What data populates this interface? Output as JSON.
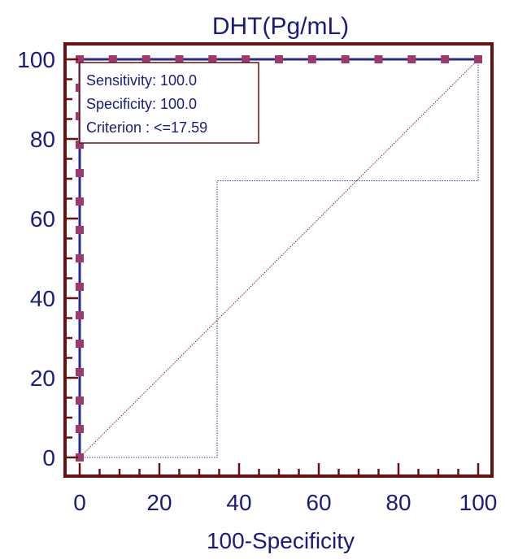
{
  "chart_data": {
    "type": "line",
    "title": "DHT(Pg/mL)",
    "xlabel": "100-Specificity",
    "ylabel": "",
    "xlim": [
      0,
      100
    ],
    "ylim": [
      0,
      100
    ],
    "xticks": [
      "0",
      "20",
      "40",
      "60",
      "80",
      "100"
    ],
    "yticks": [
      "0",
      "20",
      "40",
      "60",
      "80",
      "100"
    ],
    "grid": false,
    "colors": {
      "frame": "#6b0f0f",
      "roc_line": "#2a2a8c",
      "markers": "#9e3a6a",
      "diagonal": "#9b1c1c",
      "ci_band": "#3a3aa0",
      "text": "#1a1a80"
    },
    "series": [
      {
        "style": "roc-curve",
        "x": [
          0,
          0,
          0,
          0,
          0,
          0,
          0,
          0,
          0,
          0,
          0,
          0,
          0,
          0,
          0,
          0,
          8.33,
          16.67,
          25,
          33.33,
          41.67,
          50,
          58.33,
          66.67,
          75,
          83.33,
          91.67,
          100
        ],
        "y": [
          0,
          7.14,
          14.29,
          21.43,
          28.57,
          35.71,
          42.86,
          50,
          57.14,
          64.29,
          71.43,
          78.57,
          85.71,
          92.86,
          100,
          100,
          100,
          100,
          100,
          100,
          100,
          100,
          100,
          100,
          100,
          100,
          100,
          100
        ]
      },
      {
        "style": "reference-diagonal",
        "x": [
          0,
          100
        ],
        "y": [
          0,
          100
        ]
      },
      {
        "style": "confidence-bound-outer",
        "x": [
          0,
          34.5,
          34.5,
          100,
          100
        ],
        "y": [
          0,
          0,
          69.5,
          69.5,
          100
        ]
      }
    ],
    "annotation": {
      "lines": [
        "Sensitivity: 100.0",
        "Specificity: 100.0",
        "Criterion : <=17.59"
      ]
    }
  }
}
